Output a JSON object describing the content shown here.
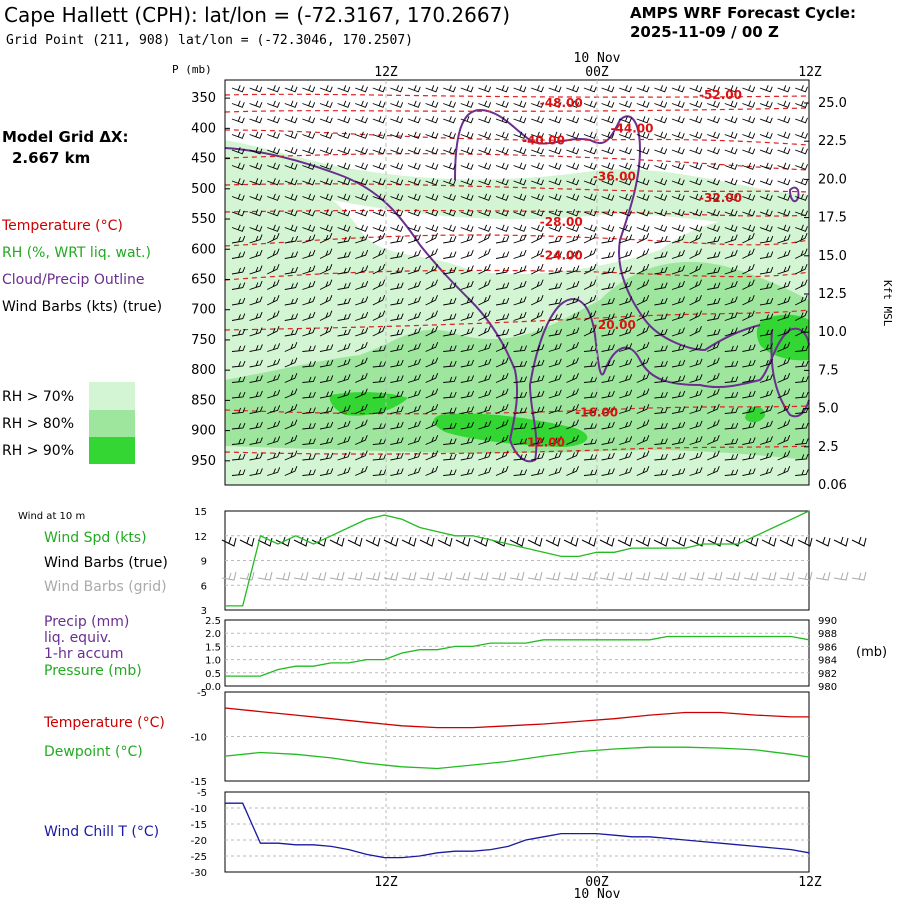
{
  "header": {
    "title": "Cape Hallett (CPH):  lat/lon = (-72.3167, 170.2667)",
    "grid_point": "Grid Point (211, 908) lat/lon = (-72.3046, 170.2507)",
    "cycle_label": "AMPS WRF Forecast Cycle:",
    "cycle_value": "2025-11-09 / 00  Z"
  },
  "model_grid": {
    "label": "Model Grid ΔX:",
    "value": "2.667 km"
  },
  "time_axis": {
    "top_date": "10 Nov",
    "bottom_date": "10 Nov",
    "ticks": [
      "12Z",
      "00Z",
      "12Z"
    ]
  },
  "upper_legend": {
    "temperature": "Temperature (°C)",
    "rh": "RH (%, WRT liq. wat.)",
    "cloud": "Cloud/Precip Outline",
    "wind": "Wind Barbs (kts) (true)",
    "rh_70": "RH > 70%",
    "rh_80": "RH > 80%",
    "rh_90": "RH > 90%",
    "colors": {
      "temperature": "#cc0000",
      "rh": "#22aa22",
      "cloud": "#6a2f8f",
      "wind": "#000000",
      "rh70": "#d3f5d3",
      "rh80": "#9ee69e",
      "rh90": "#33d633"
    }
  },
  "chart_data": [
    {
      "type": "heatmap",
      "title": "Vertical cross-section",
      "ylabel": "P (mb)",
      "y2label": "Kft MSL",
      "pressure_levels": [
        350,
        400,
        450,
        500,
        550,
        600,
        650,
        700,
        750,
        800,
        850,
        900,
        950
      ],
      "height_ticks": [
        "25.0",
        "22.5",
        "20.0",
        "17.5",
        "15.0",
        "12.5",
        "10.0",
        "7.5",
        "5.0",
        "2.5",
        "0.06"
      ],
      "height_kft": [
        25.0,
        22.5,
        20.0,
        17.5,
        15.0,
        12.5,
        10.0,
        7.5,
        5.0,
        2.5,
        0.06
      ],
      "isotherms": [
        {
          "label": "-52.00",
          "value": -52,
          "x_hours": 28,
          "p": 345
        },
        {
          "label": "-48.00",
          "value": -48,
          "x_hours": 19,
          "p": 358
        },
        {
          "label": "-44.00",
          "value": -44,
          "x_hours": 23,
          "p": 400
        },
        {
          "label": "-40.00",
          "value": -40,
          "x_hours": 18,
          "p": 420
        },
        {
          "label": "-36.00",
          "value": -36,
          "x_hours": 22,
          "p": 480
        },
        {
          "label": "-32.00",
          "value": -32,
          "x_hours": 28,
          "p": 515
        },
        {
          "label": "-28.00",
          "value": -28,
          "x_hours": 19,
          "p": 555
        },
        {
          "label": "-24.00",
          "value": -24,
          "x_hours": 19,
          "p": 610
        },
        {
          "label": "-20.00",
          "value": -20,
          "x_hours": 22,
          "p": 725
        },
        {
          "label": "-16.00",
          "value": -16,
          "x_hours": 21,
          "p": 870
        },
        {
          "label": "-12.00",
          "value": -12,
          "x_hours": 18,
          "p": 920
        }
      ]
    },
    {
      "type": "line",
      "title": "Wind at 10 m",
      "series_label": "Wind Spd (kts)",
      "barbs_true_label": "Wind Barbs (true)",
      "barbs_grid_label": "Wind Barbs (grid)",
      "yticks": [
        15,
        12,
        9,
        6,
        3
      ],
      "ylim": [
        3,
        15
      ],
      "x_hours": [
        0,
        1,
        2,
        3,
        4,
        5,
        6,
        7,
        8,
        9,
        10,
        11,
        12,
        13,
        14,
        15,
        16,
        17,
        18,
        19,
        20,
        21,
        22,
        23,
        24,
        25,
        26,
        27,
        28,
        29,
        30,
        31,
        32,
        33
      ],
      "wind_speed_kts": [
        3.5,
        3.5,
        12,
        11,
        12,
        11,
        12,
        13,
        14,
        14.5,
        14,
        13,
        12.5,
        12,
        12,
        11.5,
        11,
        10.5,
        10,
        9.5,
        9.5,
        10,
        10,
        10.5,
        10.5,
        10.5,
        10.5,
        11,
        11,
        11,
        12,
        13,
        14,
        15
      ]
    },
    {
      "type": "line",
      "title": "Precip / Pressure",
      "precip_label": "Precip (mm)",
      "precip_sub1": "liq. equiv.",
      "precip_sub2": "1-hr accum",
      "pressure_label": "Pressure (mb)",
      "y2unit": "(mb)",
      "precip_yticks": [
        "2.5",
        "2.0",
        "1.5",
        "1.0",
        "0.5",
        "0.0"
      ],
      "pressure_yticks": [
        "990",
        "988",
        "986",
        "984",
        "982",
        "980"
      ],
      "precip_ylim": [
        0,
        2.5
      ],
      "pressure_ylim": [
        980,
        990
      ],
      "x_hours": [
        0,
        2,
        3,
        4,
        5,
        6,
        7,
        8,
        9,
        10,
        11,
        12,
        13,
        14,
        15,
        16,
        17,
        18,
        19,
        20,
        21,
        22,
        23,
        24,
        25,
        26,
        27,
        28,
        29,
        30,
        31,
        32,
        33
      ],
      "pressure_mb": [
        981.5,
        981.5,
        982.5,
        983,
        983,
        983.5,
        983.5,
        984,
        984,
        985,
        985.5,
        985.5,
        986,
        986,
        986.5,
        986.5,
        986.5,
        987,
        987,
        987,
        987,
        987,
        987,
        987,
        987.5,
        987.5,
        987.5,
        987.5,
        987.5,
        987.5,
        987.5,
        987.5,
        987
      ],
      "precip_mm": [
        0,
        0,
        0,
        0,
        0,
        0,
        0,
        0,
        0,
        0,
        0,
        0,
        0,
        0,
        0,
        0,
        0,
        0,
        0,
        0,
        0,
        0,
        0,
        0,
        0,
        0,
        0,
        0,
        0,
        0,
        0,
        0,
        0
      ]
    },
    {
      "type": "line",
      "title": "Temperature / Dewpoint",
      "temp_label": "Temperature (°C)",
      "dew_label": "Dewpoint (°C)",
      "yticks": [
        "-5",
        "-10",
        "-15"
      ],
      "ylim": [
        -15,
        -5
      ],
      "x_hours": [
        0,
        2,
        4,
        6,
        8,
        10,
        12,
        14,
        16,
        18,
        20,
        22,
        24,
        26,
        28,
        30,
        32,
        33
      ],
      "temperature_c": [
        -6.8,
        -7.2,
        -7.6,
        -8.0,
        -8.4,
        -8.8,
        -9.0,
        -9.0,
        -8.8,
        -8.6,
        -8.3,
        -8.0,
        -7.6,
        -7.3,
        -7.3,
        -7.6,
        -7.8,
        -7.8
      ],
      "dewpoint_c": [
        -12.2,
        -11.8,
        -12.0,
        -12.4,
        -13.0,
        -13.4,
        -13.6,
        -13.2,
        -12.8,
        -12.2,
        -11.7,
        -11.4,
        -11.2,
        -11.2,
        -11.3,
        -11.5,
        -12.0,
        -12.3
      ]
    },
    {
      "type": "line",
      "title": "Wind Chill",
      "series_label": "Wind Chill T (°C)",
      "yticks": [
        "-5",
        "-10",
        "-15",
        "-20",
        "-25",
        "-30"
      ],
      "ylim": [
        -30,
        -5
      ],
      "x_hours": [
        0,
        1,
        2,
        3,
        4,
        5,
        6,
        7,
        8,
        9,
        10,
        11,
        12,
        13,
        14,
        15,
        16,
        17,
        18,
        19,
        20,
        21,
        22,
        23,
        24,
        25,
        26,
        27,
        28,
        29,
        30,
        31,
        32,
        33
      ],
      "wind_chill_c": [
        -8.5,
        -8.5,
        -21,
        -21,
        -21.5,
        -21.5,
        -22,
        -23,
        -24.5,
        -25.5,
        -25.5,
        -25,
        -24,
        -23.5,
        -23.5,
        -23,
        -22,
        -20,
        -19,
        -18,
        -18,
        -18,
        -18.5,
        -19,
        -19,
        -19.5,
        -20,
        -20.5,
        -21,
        -21.5,
        -22,
        -22.5,
        -23,
        -24
      ]
    }
  ]
}
